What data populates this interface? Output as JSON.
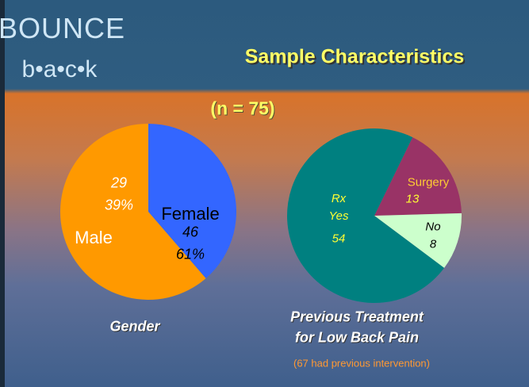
{
  "logo": {
    "line1": "BOUNCE",
    "line2": "b•a•c•k"
  },
  "title": "Sample Characteristics",
  "subtitle": "(n = 75)",
  "chart_data": [
    {
      "type": "pie",
      "title": "Gender",
      "categories": [
        "Male",
        "Female"
      ],
      "values": [
        29,
        46
      ],
      "percent_labels": [
        "39%",
        "61%"
      ],
      "colors": [
        "#3366ff",
        "#ff9900"
      ]
    },
    {
      "type": "pie",
      "title": [
        "Previous Treatment",
        "for Low Back Pain"
      ],
      "categories": [
        "Surgery",
        "No",
        "Rx Yes"
      ],
      "values": [
        13,
        8,
        54
      ],
      "colors": [
        "#993366",
        "#ccffcc",
        "#008080"
      ]
    }
  ],
  "note": "(67 had previous intervention)"
}
